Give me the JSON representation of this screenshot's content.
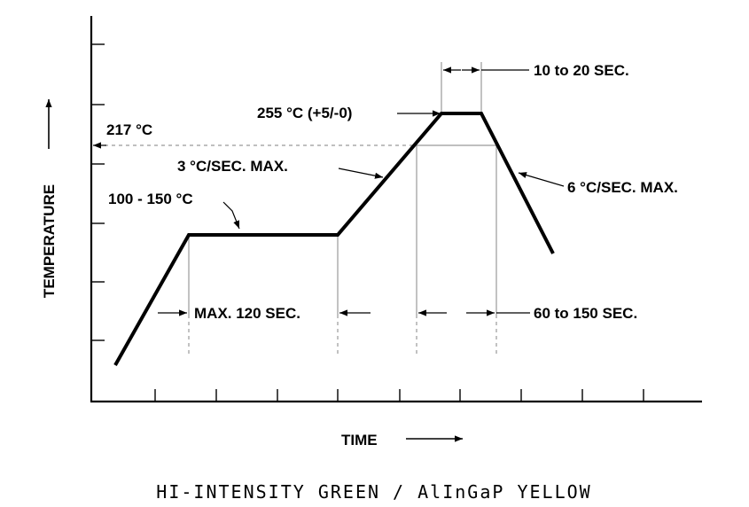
{
  "diagram": {
    "y_axis_label": "TEMPERATURE",
    "x_axis_label": "TIME",
    "annotations": {
      "liquidus": "217 °C",
      "preheat": "100 - 150 °C",
      "ramp_up": "3 °C/SEC. MAX.",
      "peak": "255 °C (+5/-0)",
      "peak_time": "10 to 20 SEC.",
      "ramp_down": "6 °C/SEC. MAX.",
      "preheat_time": "MAX. 120 SEC.",
      "above_liquidus_time": "60 to 150 SEC."
    }
  },
  "caption": "HI-INTENSITY GREEN / AlInGaP YELLOW"
}
